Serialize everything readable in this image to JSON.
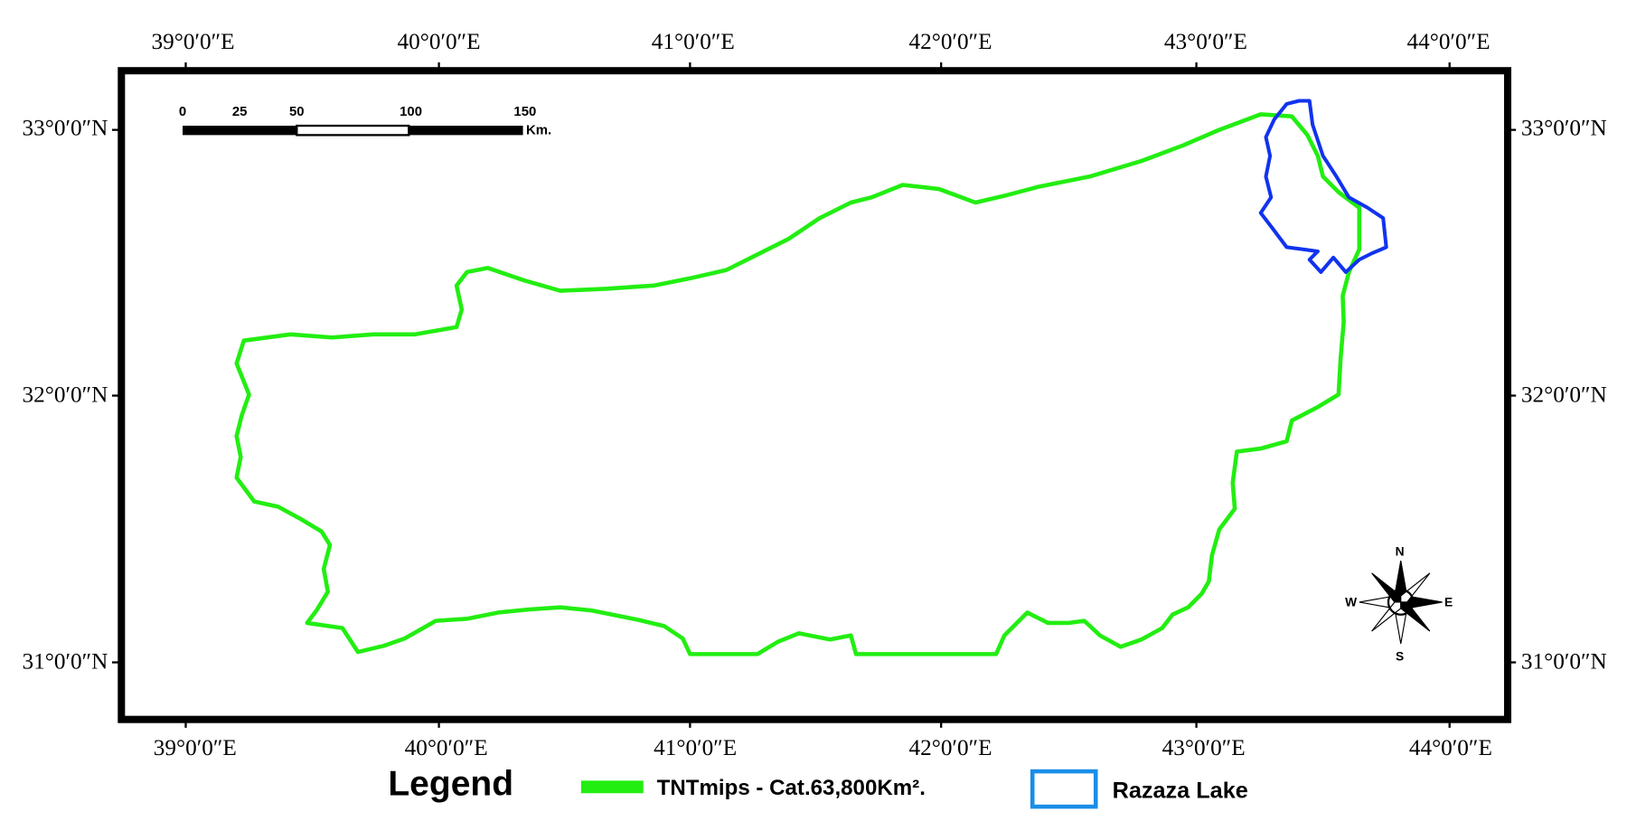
{
  "map": {
    "lon_labels": [
      "39°0′0″E",
      "40°0′0″E",
      "41°0′0″E",
      "42°0′0″E",
      "43°0′0″E",
      "44°0′0″E"
    ],
    "lat_labels": [
      "33°0′0″N",
      "32°0′0″N",
      "31°0′0″N"
    ],
    "scale_bar": {
      "labels": [
        "0",
        "25",
        "50",
        "100",
        "150"
      ],
      "unit": "Km."
    },
    "compass": {
      "north": "N",
      "south": "S",
      "west": "W",
      "east": "E"
    },
    "legend": {
      "title": "Legend",
      "items": [
        "TNTmips - Cat.63,800Km².",
        "Razaza Lake"
      ]
    }
  }
}
